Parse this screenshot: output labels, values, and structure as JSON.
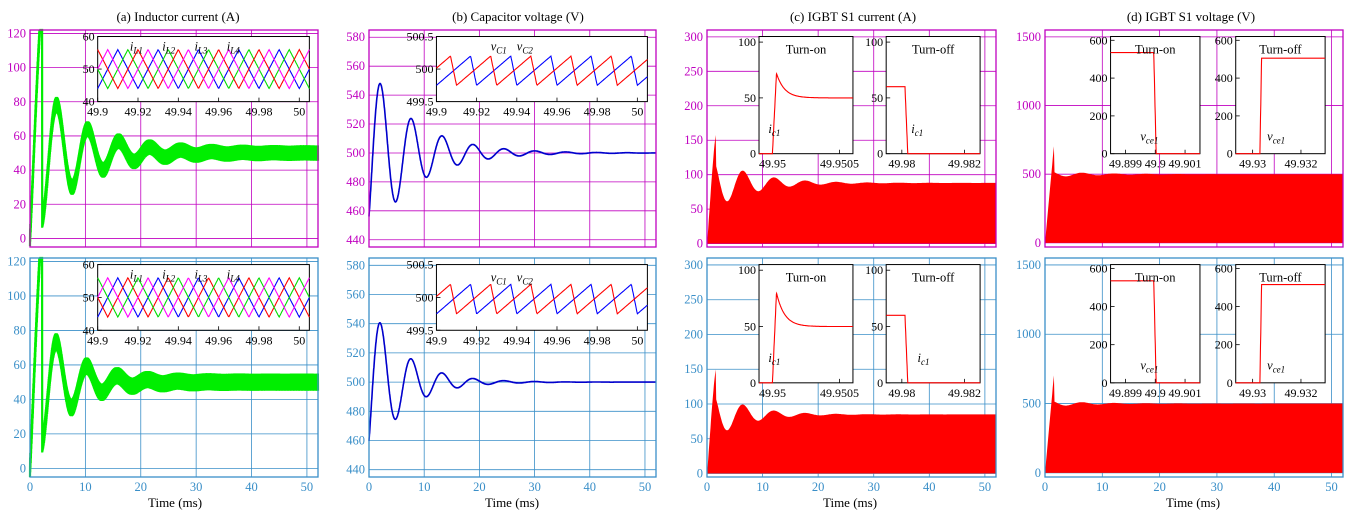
{
  "figure": {
    "colors": {
      "top_row_frame": "#c000c0",
      "bottom_row_frame": "#3a8fc8",
      "inductor_trace": "#00ee00",
      "capacitor_trace": "#0000cc",
      "igbt_trace": "#ff0000",
      "inset_blue": "#0000ff",
      "inset_red": "#ff0000",
      "inset_green": "#00dd00",
      "inset_magenta": "#ff00ff"
    },
    "panels": [
      {
        "id": "a",
        "title": "(a) Inductor current (A)"
      },
      {
        "id": "b",
        "title": "(b) Capacitor voltage (V)"
      },
      {
        "id": "c",
        "title": "(c) IGBT S1 current (A)"
      },
      {
        "id": "d",
        "title": "(d) IGBT S1 voltage (V)"
      }
    ],
    "xlabel": "Time (ms)"
  },
  "chart_data": [
    {
      "type": "line",
      "panel": "a",
      "row": "top",
      "title": "(a) Inductor current (A)",
      "xlabel": "",
      "xlim": [
        0,
        52
      ],
      "ylim": [
        -5,
        122
      ],
      "xticks": [],
      "yticks": [
        0,
        20,
        40,
        60,
        80,
        100,
        120
      ],
      "series": [
        {
          "kind": "damped",
          "steady": 50,
          "amp": 52,
          "period": 5.6,
          "tau": 8,
          "ripple": 4.5,
          "color": "#00ee00"
        }
      ],
      "insets": [
        {
          "xlim": [
            49.9,
            50.005
          ],
          "ylim": [
            40,
            60
          ],
          "xticks": [
            "49.9",
            "49.92",
            "49.94",
            "49.96",
            "49.98",
            "50"
          ],
          "yticks": [
            40,
            50,
            60
          ],
          "labels": [
            {
              "text": "iL1",
              "at": [
                49.916,
                57
              ]
            },
            {
              "text": "iL2",
              "at": [
                49.932,
                57
              ]
            },
            {
              "text": "iL3",
              "at": [
                49.948,
                57
              ]
            },
            {
              "text": "iL4",
              "at": [
                49.964,
                57
              ]
            }
          ],
          "series": [
            {
              "kind": "tri",
              "period": 0.02,
              "phase": 0,
              "min": 44,
              "max": 56,
              "color": "#0000ff"
            },
            {
              "kind": "tri",
              "period": 0.02,
              "phase": 0.005,
              "min": 44,
              "max": 56,
              "color": "#00dd00"
            },
            {
              "kind": "tri",
              "period": 0.02,
              "phase": 0.01,
              "min": 44,
              "max": 56,
              "color": "#ff0000"
            },
            {
              "kind": "tri",
              "period": 0.02,
              "phase": 0.015,
              "min": 44,
              "max": 56,
              "color": "#ff00ff"
            }
          ]
        }
      ]
    },
    {
      "type": "line",
      "panel": "a",
      "row": "bottom",
      "title": "",
      "xlabel": "Time (ms)",
      "xlim": [
        0,
        52
      ],
      "ylim": [
        -5,
        122
      ],
      "xticks": [
        0,
        10,
        20,
        30,
        40,
        50
      ],
      "yticks": [
        0,
        20,
        40,
        60,
        80,
        100,
        120
      ],
      "series": [
        {
          "kind": "damped",
          "steady": 50,
          "amp": 52,
          "period": 5.5,
          "tau": 6,
          "ripple": 5,
          "color": "#00ee00"
        }
      ],
      "insets": [
        {
          "xlim": [
            49.9,
            50.005
          ],
          "ylim": [
            40,
            60
          ],
          "xticks": [
            "49.9",
            "49.92",
            "49.94",
            "49.96",
            "49.98",
            "50"
          ],
          "yticks": [
            40,
            50,
            60
          ],
          "labels": [
            {
              "text": "iL1",
              "at": [
                49.916,
                57
              ]
            },
            {
              "text": "iL2",
              "at": [
                49.932,
                57
              ]
            },
            {
              "text": "iL3",
              "at": [
                49.948,
                57
              ]
            },
            {
              "text": "iL4",
              "at": [
                49.964,
                57
              ]
            }
          ],
          "series": [
            {
              "kind": "tri",
              "period": 0.02,
              "phase": 0,
              "min": 44,
              "max": 56,
              "color": "#0000ff"
            },
            {
              "kind": "tri",
              "period": 0.02,
              "phase": 0.005,
              "min": 44,
              "max": 56,
              "color": "#ff0000"
            },
            {
              "kind": "tri",
              "period": 0.02,
              "phase": 0.01,
              "min": 44,
              "max": 56,
              "color": "#00dd00"
            },
            {
              "kind": "tri",
              "period": 0.02,
              "phase": 0.015,
              "min": 44,
              "max": 56,
              "color": "#ff00ff"
            }
          ]
        }
      ]
    },
    {
      "type": "line",
      "panel": "b",
      "row": "top",
      "title": "(b) Capacitor voltage (V)",
      "xlabel": "",
      "xlim": [
        0,
        52
      ],
      "ylim": [
        435,
        585
      ],
      "xticks": [],
      "yticks": [
        440,
        460,
        480,
        500,
        520,
        540,
        560,
        580
      ],
      "series": [
        {
          "kind": "damped",
          "steady": 500,
          "amp": -62,
          "period": 5.6,
          "tau": 8,
          "ripple": 0,
          "color": "#0000cc"
        }
      ],
      "insets": [
        {
          "xlim": [
            49.9,
            50.005
          ],
          "ylim": [
            499.5,
            500.5
          ],
          "xticks": [
            "49.9",
            "49.92",
            "49.94",
            "49.96",
            "49.98",
            "50"
          ],
          "yticks": [
            "499.5",
            "500",
            "500.5"
          ],
          "labels": [
            {
              "text": "vC1",
              "at": [
                49.927,
                500.35
              ]
            },
            {
              "text": "vC2",
              "at": [
                49.94,
                500.35
              ]
            }
          ],
          "series": [
            {
              "kind": "saw",
              "period": 0.02,
              "phase": 0,
              "min": 499.75,
              "max": 500.2,
              "color": "#0000ff"
            },
            {
              "kind": "saw",
              "period": 0.02,
              "phase": 0.01,
              "min": 499.75,
              "max": 500.2,
              "color": "#ff0000"
            }
          ]
        }
      ]
    },
    {
      "type": "line",
      "panel": "b",
      "row": "bottom",
      "title": "",
      "xlabel": "Time (ms)",
      "xlim": [
        0,
        52
      ],
      "ylim": [
        435,
        585
      ],
      "xticks": [
        0,
        10,
        20,
        30,
        40,
        50
      ],
      "yticks": [
        440,
        460,
        480,
        500,
        520,
        540,
        560,
        580
      ],
      "series": [
        {
          "kind": "damped",
          "steady": 500,
          "amp": -57,
          "period": 5.6,
          "tau": 6,
          "ripple": 0,
          "color": "#0000cc"
        }
      ],
      "insets": [
        {
          "xlim": [
            49.9,
            50.005
          ],
          "ylim": [
            499.5,
            500.5
          ],
          "xticks": [
            "49.9",
            "49.92",
            "49.94",
            "49.96",
            "49.98",
            "50"
          ],
          "yticks": [
            "499.5",
            "500",
            "500.5"
          ],
          "labels": [
            {
              "text": "vC1",
              "at": [
                49.927,
                500.3
              ]
            },
            {
              "text": "vC2",
              "at": [
                49.94,
                500.3
              ]
            }
          ],
          "series": [
            {
              "kind": "saw",
              "period": 0.02,
              "phase": 0,
              "min": 499.75,
              "max": 500.2,
              "color": "#0000ff"
            },
            {
              "kind": "saw",
              "period": 0.02,
              "phase": 0.01,
              "min": 499.75,
              "max": 500.2,
              "color": "#ff0000"
            }
          ]
        }
      ]
    },
    {
      "type": "area",
      "panel": "c",
      "row": "top",
      "title": "(c) IGBT S1 current (A)",
      "xlabel": "",
      "xlim": [
        0,
        52
      ],
      "ylim": [
        -5,
        310
      ],
      "xticks": [],
      "yticks": [
        0,
        50,
        100,
        150,
        200,
        250,
        300
      ],
      "series": [
        {
          "kind": "envelope",
          "steady": 88,
          "amp": 45,
          "tau": 7,
          "period": 5.6,
          "color": "#ff0000"
        }
      ],
      "insets": [
        {
          "xlim": [
            49.9499,
            49.9506
          ],
          "ylim": [
            0,
            105
          ],
          "xticks": [
            "49.95",
            "49.9505"
          ],
          "yticks": [
            0,
            50,
            100
          ],
          "title": "Turn-on",
          "labels": [
            {
              "text": "ic1",
              "at": [
                49.94997,
                22
              ]
            }
          ],
          "series": [
            {
              "kind": "turnon",
              "edge": 49.95,
              "rise": 3e-05,
              "peak": 72,
              "settle": 50,
              "decay": 6e-05,
              "color": "#ff0000"
            }
          ]
        },
        {
          "xlim": [
            49.9795,
            49.9825
          ],
          "ylim": [
            0,
            105
          ],
          "xticks": [
            "49.98",
            "49.982"
          ],
          "yticks": [
            0,
            50,
            100
          ],
          "title": "Turn-off",
          "labels": [
            {
              "text": "ic1",
              "at": [
                49.9803,
                22
              ]
            }
          ],
          "series": [
            {
              "kind": "turnoff",
              "edge": 49.9801,
              "high": 60,
              "fall": 9e-05,
              "color": "#ff0000"
            }
          ]
        }
      ]
    },
    {
      "type": "area",
      "panel": "c",
      "row": "bottom",
      "title": "",
      "xlabel": "Time (ms)",
      "xlim": [
        0,
        52
      ],
      "ylim": [
        -5,
        310
      ],
      "xticks": [
        0,
        10,
        20,
        30,
        40,
        50
      ],
      "yticks": [
        0,
        50,
        100,
        150,
        200,
        250,
        300
      ],
      "series": [
        {
          "kind": "envelope",
          "steady": 85,
          "amp": 42,
          "tau": 6,
          "period": 5.6,
          "color": "#ff0000"
        }
      ],
      "insets": [
        {
          "xlim": [
            49.9499,
            49.9506
          ],
          "ylim": [
            0,
            105
          ],
          "xticks": [
            "49.95",
            "49.9505"
          ],
          "yticks": [
            0,
            50,
            100
          ],
          "title": "Turn-on",
          "labels": [
            {
              "text": "ic1",
              "at": [
                49.94997,
                22
              ]
            }
          ],
          "series": [
            {
              "kind": "turnon",
              "edge": 49.95,
              "rise": 3e-05,
              "peak": 80,
              "settle": 50,
              "decay": 6e-05,
              "color": "#ff0000"
            }
          ]
        },
        {
          "xlim": [
            49.9795,
            49.9825
          ],
          "ylim": [
            0,
            105
          ],
          "xticks": [
            "49.98",
            "49.982"
          ],
          "yticks": [
            0,
            50,
            100
          ],
          "title": "Turn-off",
          "labels": [
            {
              "text": "ic1",
              "at": [
                49.9805,
                22
              ]
            }
          ],
          "series": [
            {
              "kind": "turnoff",
              "edge": 49.9801,
              "high": 60,
              "fall": 9e-05,
              "color": "#ff0000"
            }
          ]
        }
      ]
    },
    {
      "type": "area",
      "panel": "d",
      "row": "top",
      "title": "(d) IGBT S1 voltage (V)",
      "xlabel": "",
      "xlim": [
        0,
        52
      ],
      "ylim": [
        -30,
        1550
      ],
      "xticks": [],
      "yticks": [
        0,
        500,
        1000,
        1500
      ],
      "series": [
        {
          "kind": "envelope",
          "steady": 500,
          "amp": 25,
          "tau": 8,
          "period": 5.6,
          "color": "#ff0000"
        }
      ],
      "insets": [
        {
          "xlim": [
            49.8985,
            49.9015
          ],
          "ylim": [
            0,
            620
          ],
          "xticks": [
            "49.899",
            "49.9",
            "49.901"
          ],
          "yticks": [
            0,
            200,
            400,
            600
          ],
          "title": "Turn-on",
          "labels": [
            {
              "text": "vce1",
              "at": [
                49.8995,
                90
              ]
            }
          ],
          "series": [
            {
              "kind": "turnoff",
              "edge": 49.89995,
              "high": 535,
              "fall": 8e-05,
              "color": "#ff0000"
            }
          ]
        },
        {
          "xlim": [
            49.9293,
            49.933
          ],
          "ylim": [
            0,
            620
          ],
          "xticks": [
            "49.93",
            "49.932"
          ],
          "yticks": [
            0,
            200,
            400,
            600
          ],
          "title": "Turn-off",
          "labels": [
            {
              "text": "vce1",
              "at": [
                49.9306,
                90
              ]
            }
          ],
          "series": [
            {
              "kind": "riseup",
              "edge": 49.9303,
              "high": 505,
              "rise": 7e-05,
              "color": "#ff0000"
            }
          ]
        }
      ]
    },
    {
      "type": "area",
      "panel": "d",
      "row": "bottom",
      "title": "",
      "xlabel": "Time (ms)",
      "xlim": [
        0,
        52
      ],
      "ylim": [
        -30,
        1550
      ],
      "xticks": [
        0,
        10,
        20,
        30,
        40,
        50
      ],
      "yticks": [
        0,
        500,
        1000,
        1500
      ],
      "series": [
        {
          "kind": "envelope",
          "steady": 500,
          "amp": 25,
          "tau": 7,
          "period": 5.6,
          "color": "#ff0000"
        }
      ],
      "insets": [
        {
          "xlim": [
            49.8985,
            49.9015
          ],
          "ylim": [
            0,
            620
          ],
          "xticks": [
            "49.899",
            "49.9",
            "49.901"
          ],
          "yticks": [
            0,
            200,
            400,
            600
          ],
          "title": "Turn-on",
          "labels": [
            {
              "text": "vce1",
              "at": [
                49.8995,
                90
              ]
            }
          ],
          "series": [
            {
              "kind": "turnoff",
              "edge": 49.89995,
              "high": 535,
              "fall": 8e-05,
              "color": "#ff0000"
            }
          ]
        },
        {
          "xlim": [
            49.9293,
            49.933
          ],
          "ylim": [
            0,
            620
          ],
          "xticks": [
            "49.93",
            "49.932"
          ],
          "yticks": [
            0,
            200,
            400,
            600
          ],
          "title": "Turn-off",
          "labels": [
            {
              "text": "vce1",
              "at": [
                49.9306,
                90
              ]
            }
          ],
          "series": [
            {
              "kind": "riseup",
              "edge": 49.9303,
              "high": 515,
              "rise": 7e-05,
              "color": "#ff0000"
            }
          ]
        }
      ]
    }
  ]
}
